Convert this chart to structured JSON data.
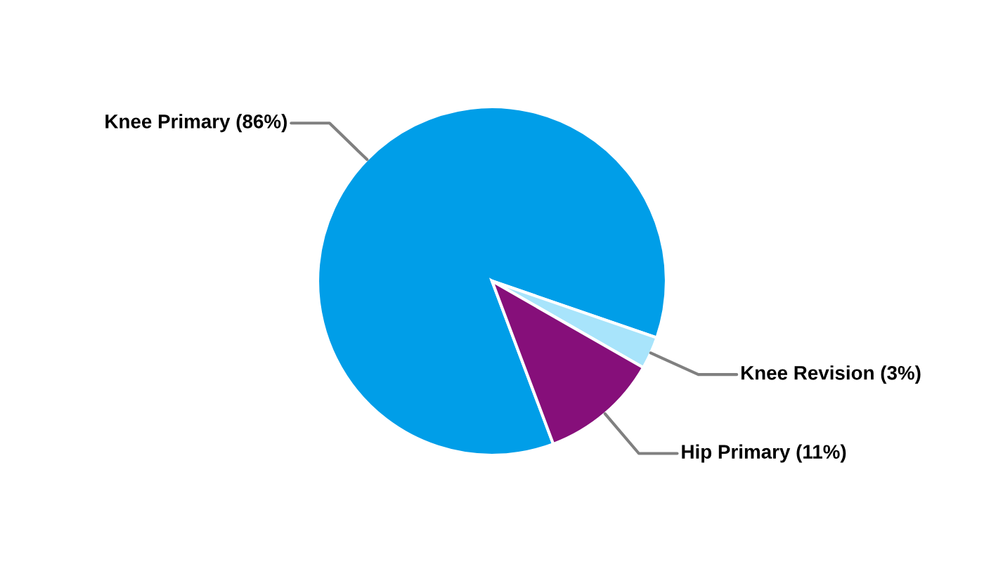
{
  "chart_data": {
    "type": "pie",
    "categories": [
      "Knee Primary",
      "Knee Revision",
      "Hip Primary"
    ],
    "values": [
      86,
      3,
      11
    ],
    "value_labels": [
      "(86%)",
      "(3%)",
      "(11%)"
    ],
    "colors": [
      "#009ee8",
      "#a8e4fb",
      "#860f7a"
    ],
    "legend": false
  }
}
